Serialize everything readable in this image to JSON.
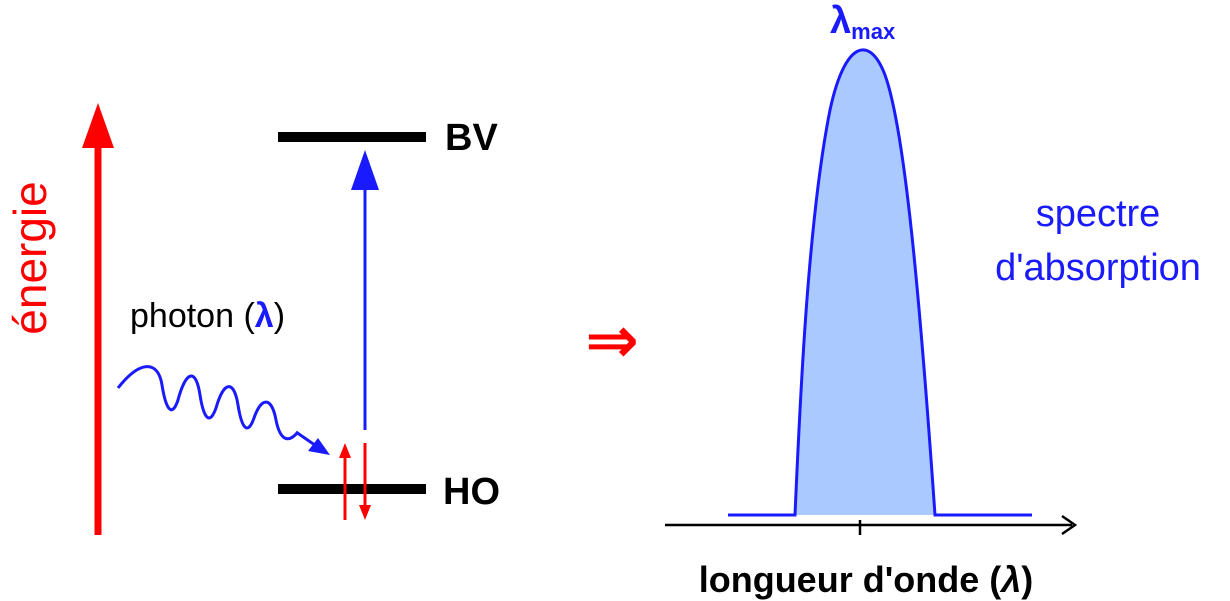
{
  "energy_axis": {
    "label": "énergie",
    "color": "#ff0000"
  },
  "levels": {
    "upper": "BV",
    "lower": "HO"
  },
  "photon": {
    "prefix": "photon (",
    "lambda": "λ",
    "suffix": ")"
  },
  "implies_symbol": "⇒",
  "spectrum": {
    "peak_lambda": "λ",
    "peak_sub": "max",
    "title_line1": "spectre",
    "title_line2": "d'absorption",
    "x_axis_label": "longueur d'onde (",
    "x_axis_lambda": "λ",
    "x_axis_close": ")"
  },
  "colors": {
    "blue": "#1a1aff",
    "red": "#ff0000",
    "fill": "#a9c9ff",
    "black": "#000000"
  }
}
